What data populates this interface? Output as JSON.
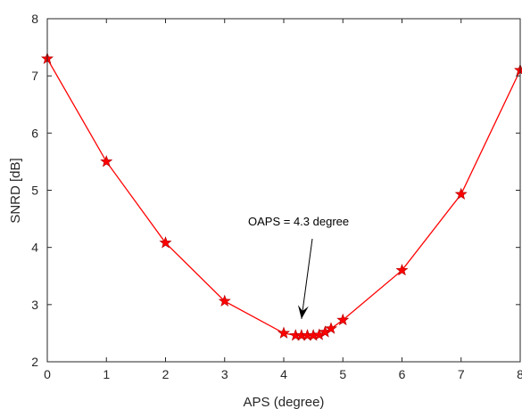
{
  "chart_data": {
    "type": "line",
    "title": "",
    "xlabel": "APS (degree)",
    "ylabel": "SNRD  [dB]",
    "xlim": [
      0,
      8
    ],
    "ylim": [
      2,
      8
    ],
    "xticks": [
      "0",
      "1",
      "2",
      "3",
      "4",
      "5",
      "6",
      "7",
      "8"
    ],
    "yticks": [
      "2",
      "3",
      "4",
      "5",
      "6",
      "7",
      "8"
    ],
    "grid": false,
    "series": [
      {
        "color": "#ff0000",
        "marker": "star",
        "x": [
          0,
          1,
          2,
          3,
          4,
          4.2,
          4.3,
          4.4,
          4.5,
          4.6,
          4.7,
          4.8,
          5,
          6,
          7,
          8
        ],
        "y": [
          7.3,
          5.5,
          4.08,
          3.06,
          2.5,
          2.46,
          2.46,
          2.46,
          2.46,
          2.47,
          2.52,
          2.58,
          2.73,
          3.6,
          4.93,
          7.1
        ]
      }
    ],
    "annotation": {
      "text": "OAPS = 4.3 degree",
      "arrow_to": [
        4.3,
        2.75
      ]
    }
  }
}
